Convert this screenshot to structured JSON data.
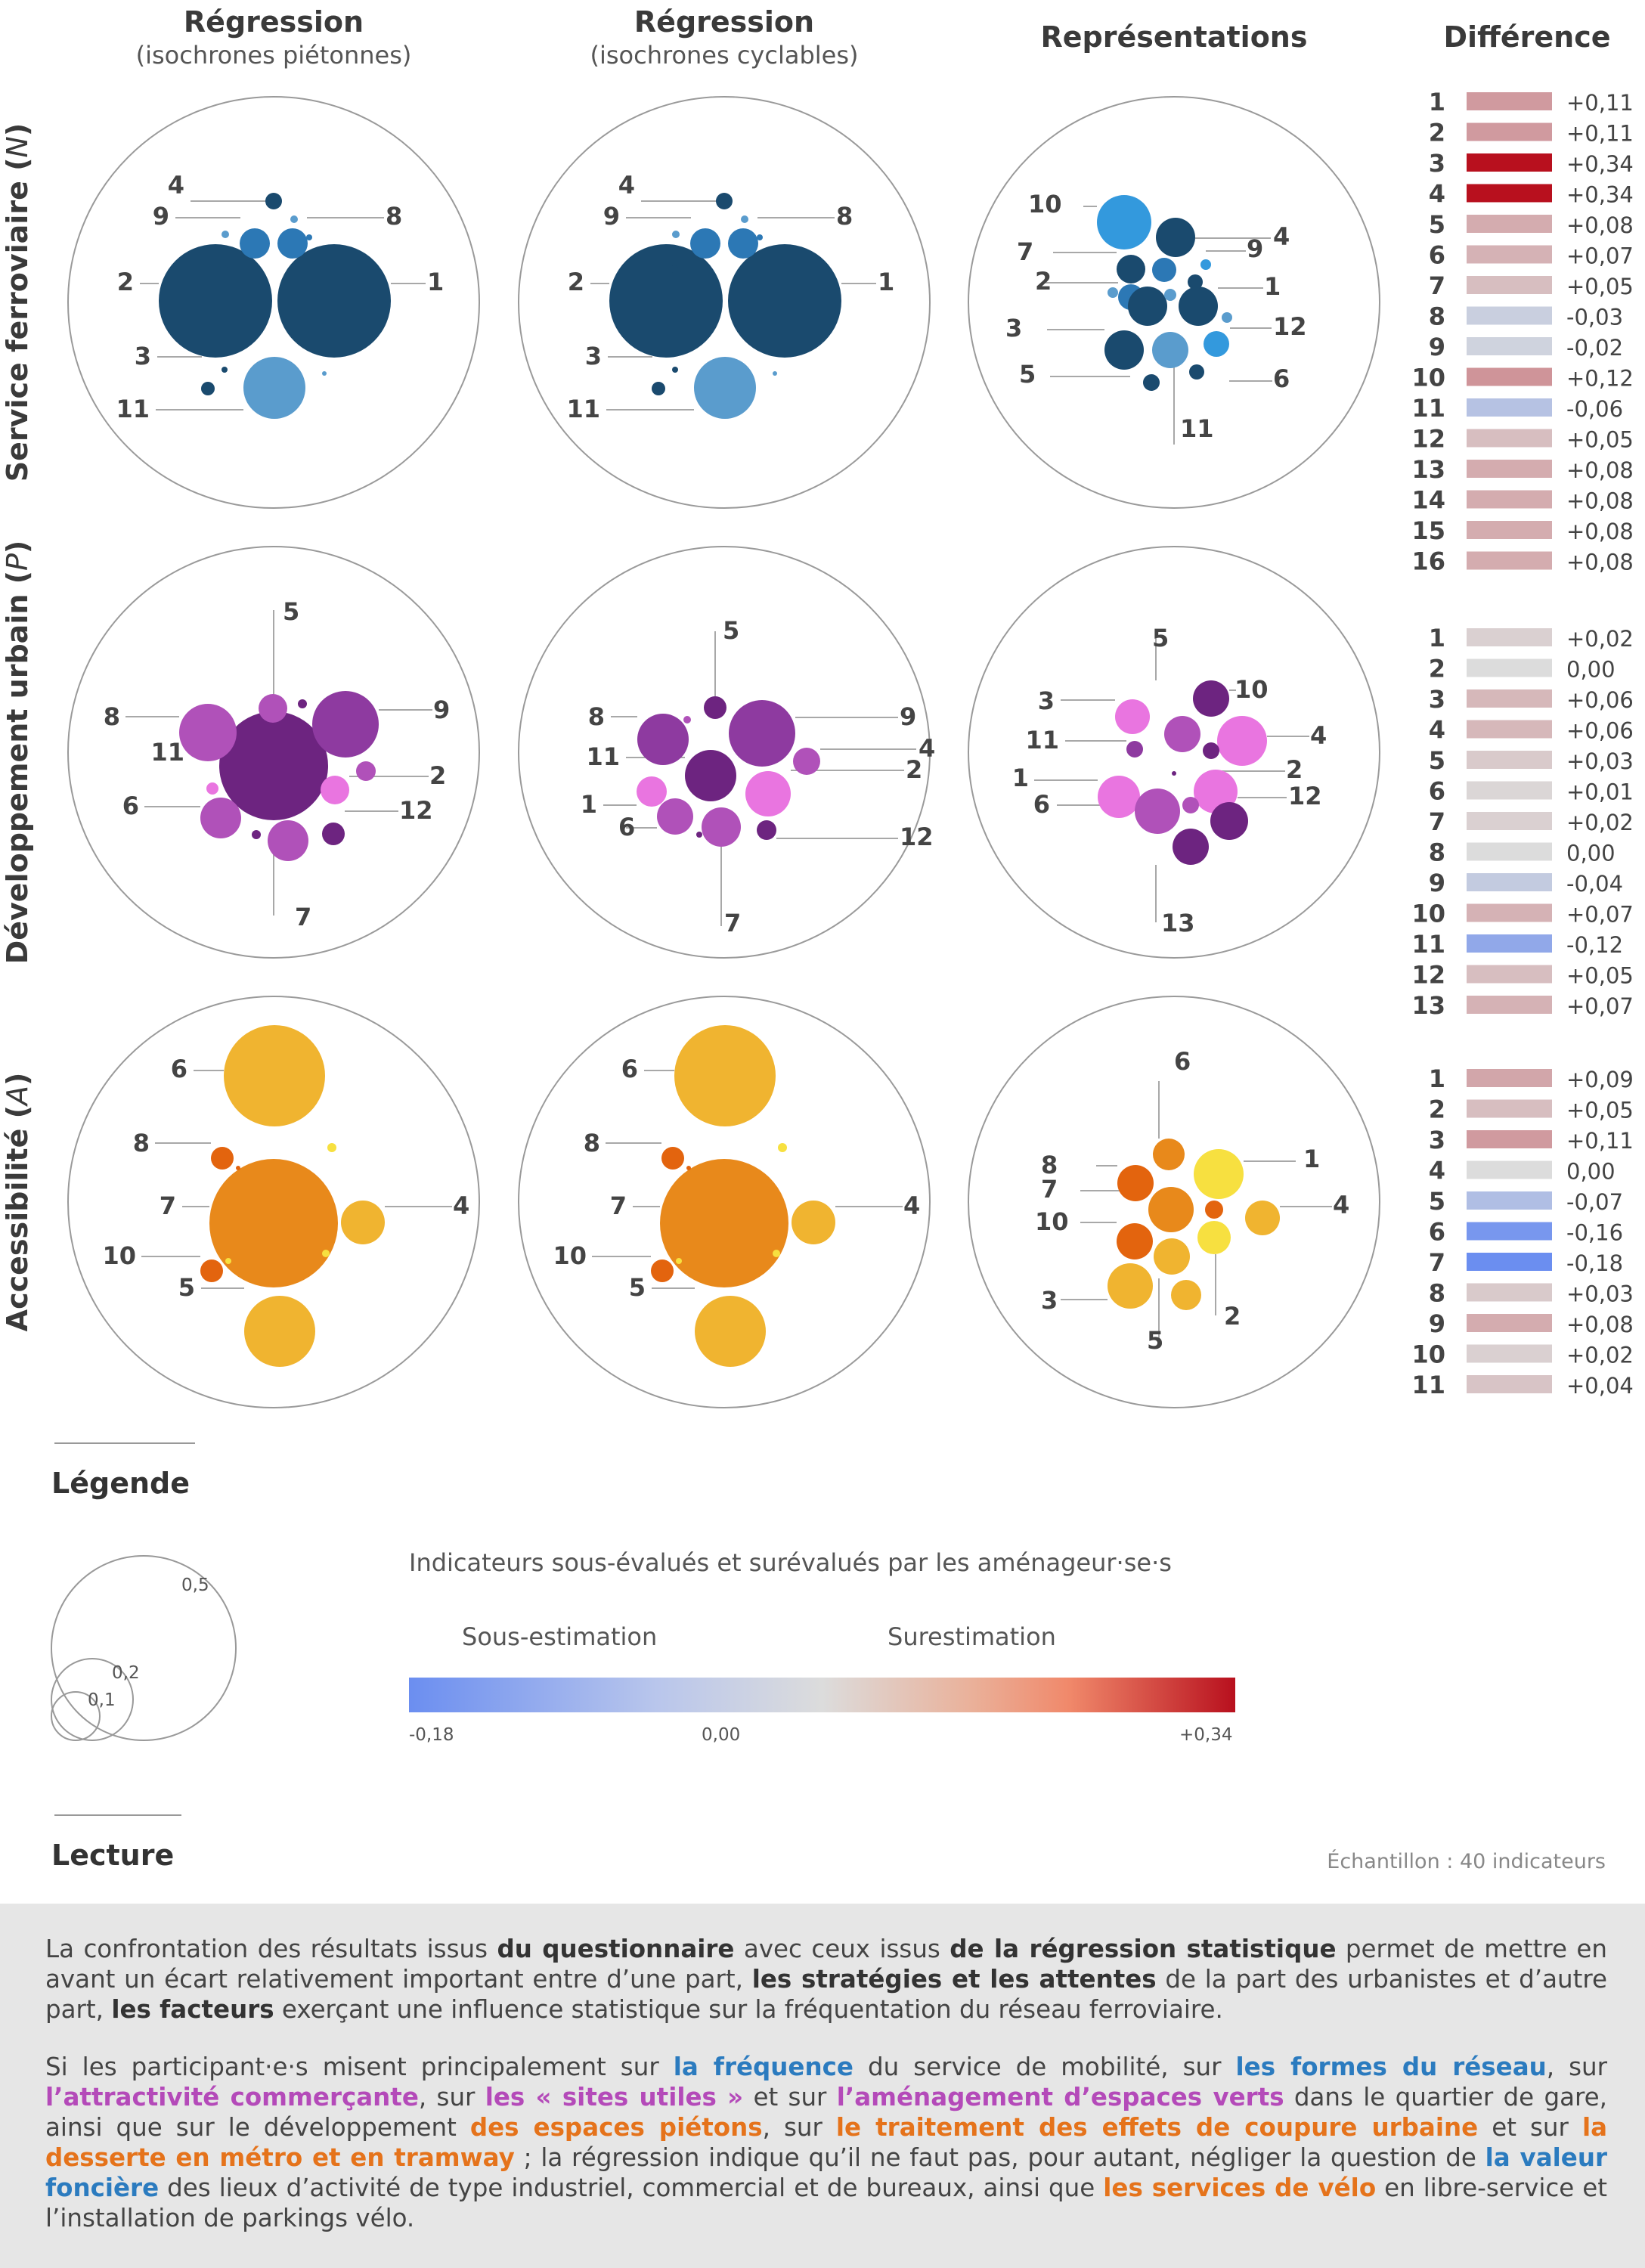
{
  "columns": [
    {
      "title": "Régression",
      "subtitle": "(isochrones piétonnes)"
    },
    {
      "title": "Régression",
      "subtitle": "(isochrones cyclables)"
    },
    {
      "title": "Représentations",
      "subtitle": ""
    },
    {
      "title": "Différence",
      "subtitle": ""
    }
  ],
  "rows": [
    {
      "label": "Service ferroviaire",
      "var": "N"
    },
    {
      "label": "Développement urbain",
      "var": "P"
    },
    {
      "label": "Accessibilité",
      "var": "A"
    }
  ],
  "colors": {
    "blue_dark": "#1a4a6e",
    "blue_mid": "#2c78b5",
    "blue_light": "#5a9ccd",
    "blue_bright": "#3399dd",
    "purple_dark": "#6d2480",
    "purple_mid": "#8e3aa0",
    "purple_light": "#b051b9",
    "pink": "#e975e0",
    "orange_dark": "#e3640e",
    "orange_mid": "#e8891b",
    "orange_light": "#f0b430",
    "yellow": "#f7e040",
    "diff_scale": [
      "#6b8ef0",
      "#dcdcdc",
      "#b8101e"
    ]
  },
  "chart_data": {
    "type": "bubble",
    "panels": [
      {
        "row": 0,
        "col": 0,
        "labels": [
          "4",
          "9",
          "8",
          "2",
          "1",
          "3",
          "11"
        ]
      },
      {
        "row": 0,
        "col": 1,
        "labels": [
          "4",
          "9",
          "8",
          "2",
          "1",
          "3",
          "11"
        ]
      },
      {
        "row": 0,
        "col": 2,
        "labels": [
          "10",
          "4",
          "7",
          "9",
          "2",
          "1",
          "3",
          "12",
          "5",
          "6",
          "11"
        ]
      },
      {
        "row": 1,
        "col": 0,
        "labels": [
          "5",
          "8",
          "9",
          "11",
          "2",
          "6",
          "12",
          "7"
        ]
      },
      {
        "row": 1,
        "col": 1,
        "labels": [
          "5",
          "8",
          "9",
          "4",
          "11",
          "2",
          "1",
          "6",
          "12",
          "7"
        ]
      },
      {
        "row": 1,
        "col": 2,
        "labels": [
          "5",
          "3",
          "10",
          "4",
          "11",
          "2",
          "1",
          "12",
          "6",
          "13"
        ]
      },
      {
        "row": 2,
        "col": 0,
        "labels": [
          "6",
          "8",
          "7",
          "4",
          "10",
          "5"
        ]
      },
      {
        "row": 2,
        "col": 1,
        "labels": [
          "6",
          "8",
          "7",
          "4",
          "10",
          "5"
        ]
      },
      {
        "row": 2,
        "col": 2,
        "labels": [
          "6",
          "1",
          "8",
          "7",
          "4",
          "10",
          "3",
          "2",
          "5"
        ]
      }
    ],
    "difference": [
      {
        "section": "Service ferroviaire",
        "items": [
          {
            "id": "1",
            "value": 0.11,
            "label": "+0,11"
          },
          {
            "id": "2",
            "value": 0.11,
            "label": "+0,11"
          },
          {
            "id": "3",
            "value": 0.34,
            "label": "+0,34"
          },
          {
            "id": "4",
            "value": 0.34,
            "label": "+0,34"
          },
          {
            "id": "5",
            "value": 0.08,
            "label": "+0,08"
          },
          {
            "id": "6",
            "value": 0.07,
            "label": "+0,07"
          },
          {
            "id": "7",
            "value": 0.05,
            "label": "+0,05"
          },
          {
            "id": "8",
            "value": -0.03,
            "label": "-0,03"
          },
          {
            "id": "9",
            "value": -0.02,
            "label": "-0,02"
          },
          {
            "id": "10",
            "value": 0.12,
            "label": "+0,12"
          },
          {
            "id": "11",
            "value": -0.06,
            "label": "-0,06"
          },
          {
            "id": "12",
            "value": 0.05,
            "label": "+0,05"
          },
          {
            "id": "13",
            "value": 0.08,
            "label": "+0,08"
          },
          {
            "id": "14",
            "value": 0.08,
            "label": "+0,08"
          },
          {
            "id": "15",
            "value": 0.08,
            "label": "+0,08"
          },
          {
            "id": "16",
            "value": 0.08,
            "label": "+0,08"
          }
        ]
      },
      {
        "section": "Développement urbain",
        "items": [
          {
            "id": "1",
            "value": 0.02,
            "label": "+0,02"
          },
          {
            "id": "2",
            "value": 0.0,
            "label": "0,00"
          },
          {
            "id": "3",
            "value": 0.06,
            "label": "+0,06"
          },
          {
            "id": "4",
            "value": 0.06,
            "label": "+0,06"
          },
          {
            "id": "5",
            "value": 0.03,
            "label": "+0,03"
          },
          {
            "id": "6",
            "value": 0.01,
            "label": "+0,01"
          },
          {
            "id": "7",
            "value": 0.02,
            "label": "+0,02"
          },
          {
            "id": "8",
            "value": 0.0,
            "label": "0,00"
          },
          {
            "id": "9",
            "value": -0.04,
            "label": "-0,04"
          },
          {
            "id": "10",
            "value": 0.07,
            "label": "+0,07"
          },
          {
            "id": "11",
            "value": -0.12,
            "label": "-0,12"
          },
          {
            "id": "12",
            "value": 0.05,
            "label": "+0,05"
          },
          {
            "id": "13",
            "value": 0.07,
            "label": "+0,07"
          }
        ]
      },
      {
        "section": "Accessibilité",
        "items": [
          {
            "id": "1",
            "value": 0.09,
            "label": "+0,09"
          },
          {
            "id": "2",
            "value": 0.05,
            "label": "+0,05"
          },
          {
            "id": "3",
            "value": 0.11,
            "label": "+0,11"
          },
          {
            "id": "4",
            "value": 0.0,
            "label": "0,00"
          },
          {
            "id": "5",
            "value": -0.07,
            "label": "-0,07"
          },
          {
            "id": "6",
            "value": -0.16,
            "label": "-0,16"
          },
          {
            "id": "7",
            "value": -0.18,
            "label": "-0,18"
          },
          {
            "id": "8",
            "value": 0.03,
            "label": "+0,03"
          },
          {
            "id": "9",
            "value": 0.08,
            "label": "+0,08"
          },
          {
            "id": "10",
            "value": 0.02,
            "label": "+0,02"
          },
          {
            "id": "11",
            "value": 0.04,
            "label": "+0,04"
          }
        ]
      }
    ],
    "diff_range": [
      -0.18,
      0.34
    ]
  },
  "legend": {
    "title": "Légende",
    "size_values": [
      "0,5",
      "0,2",
      "0,1"
    ],
    "scale_title": "Indicateurs sous-évalués et surévalués par les aménageur·se·s",
    "under_label": "Sous-estimation",
    "over_label": "Surestimation",
    "tick_min": "-0,18",
    "tick_mid": "0,00",
    "tick_max": "+0,34"
  },
  "lecture": {
    "title": "Lecture",
    "sample": "Échantillon : 40 indicateurs",
    "p1": [
      "La confrontation des résultats issus ",
      "du questionnaire",
      " avec ceux issus ",
      "de la régression statistique",
      " permet de mettre en avant un écart relativement important entre d’une part, ",
      "les stratégies et les attentes",
      " de la part des urbanistes et d’autre part, ",
      "les facteurs",
      " exerçant une influence statistique sur la fréquentation du réseau ferroviaire."
    ],
    "p2": [
      "Si les participant·e·s misent principalement sur ",
      "la fréquence",
      " du service de mobilité, sur ",
      "les formes du réseau",
      ", sur ",
      "l’attractivité commerçante",
      ", sur ",
      "les « sites utiles »",
      " et sur ",
      "l’aménagement d’espaces verts",
      " dans le quartier de gare, ainsi que sur le développement ",
      "des espaces piétons",
      ", sur ",
      "le traitement des effets de coupure urbaine",
      " et sur ",
      "la desserte en métro et en tramway",
      " ; la régression indique qu’il ne faut pas, pour autant, négliger la question de ",
      "la valeur foncière",
      " des lieux d’activité de type industriel, commercial et de bureaux, ainsi que ",
      "les services de vélo",
      " en libre-service et l’installation de parkings vélo."
    ]
  }
}
